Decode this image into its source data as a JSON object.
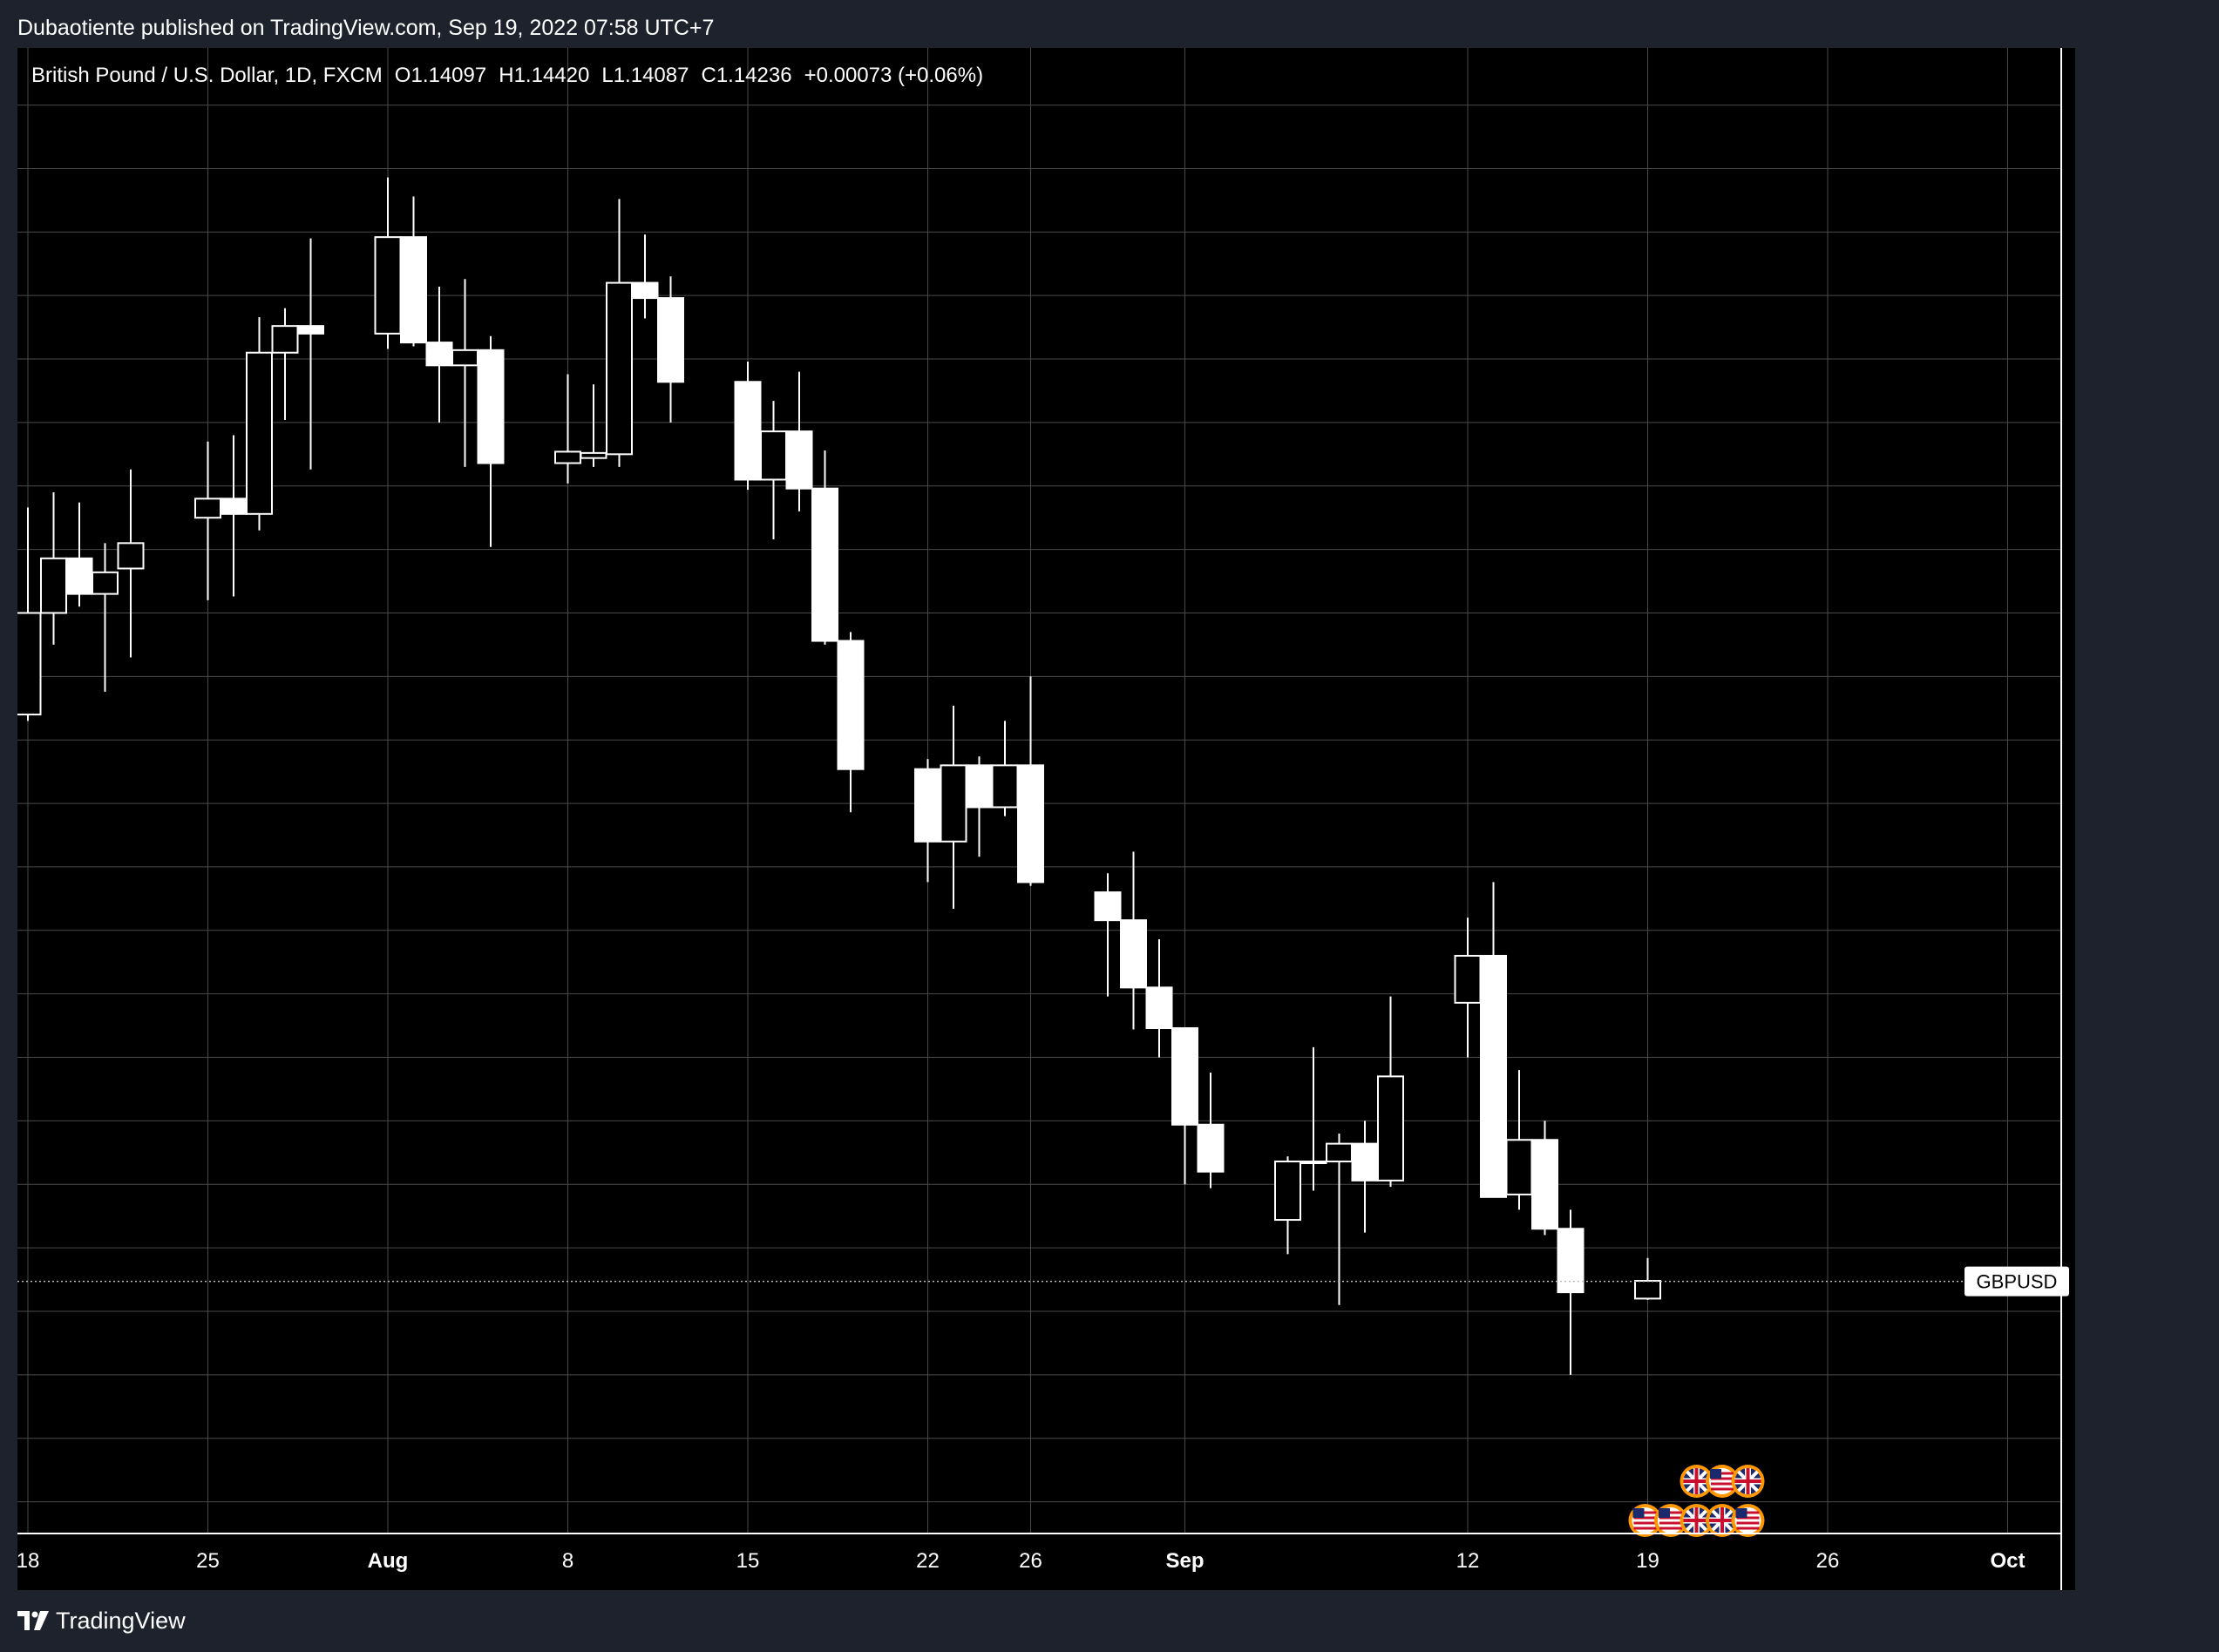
{
  "header": {
    "published_line": "Dubaotiente published on TradingView.com, Sep 19, 2022 07:58 UTC+7"
  },
  "legend": {
    "symbol_desc": "British Pound / U.S. Dollar, 1D, FXCM",
    "open_label": "O",
    "open": "1.14097",
    "high_label": "H",
    "high": "1.14420",
    "low_label": "L",
    "low": "1.14087",
    "close_label": "C",
    "close": "1.14236",
    "change": "+0.00073 (+0.06%)"
  },
  "price_label": {
    "symbol": "GBPUSD",
    "price": 1.14236
  },
  "footer": {
    "brand": "TradingView"
  },
  "colors": {
    "background": "#000000",
    "frame": "#1e222d",
    "grid": "#4a4a4a",
    "candle": "#ffffff",
    "text": "#ffffff",
    "event_ring": "#ff9800"
  },
  "chart_data": {
    "type": "candlestick",
    "timeframe": "1D",
    "y_axis_unit": "USD",
    "ylim": [
      1.1225,
      1.2395
    ],
    "y_ticks": [
      "1.23500",
      "1.23000",
      "1.22500",
      "1.22000",
      "1.21500",
      "1.21000",
      "1.20500",
      "1.20000",
      "1.19500",
      "1.19000",
      "1.18500",
      "1.18000",
      "1.17500",
      "1.17000",
      "1.16500",
      "1.16000",
      "1.15500",
      "1.15000",
      "1.14500",
      "1.14000",
      "1.13500",
      "1.13000",
      "1.12500"
    ],
    "x_ticks": [
      {
        "label": "18",
        "date": "2022-07-18",
        "bold": false
      },
      {
        "label": "25",
        "date": "2022-07-25",
        "bold": false
      },
      {
        "label": "Aug",
        "date": "2022-08-01",
        "bold": true
      },
      {
        "label": "8",
        "date": "2022-08-08",
        "bold": false
      },
      {
        "label": "15",
        "date": "2022-08-15",
        "bold": false
      },
      {
        "label": "22",
        "date": "2022-08-22",
        "bold": false
      },
      {
        "label": "26",
        "date": "2022-08-26",
        "bold": false
      },
      {
        "label": "Sep",
        "date": "2022-09-01",
        "bold": true
      },
      {
        "label": "12",
        "date": "2022-09-12",
        "bold": false
      },
      {
        "label": "19",
        "date": "2022-09-19",
        "bold": false
      },
      {
        "label": "26",
        "date": "2022-09-26",
        "bold": false
      },
      {
        "label": "Oct",
        "date": "2022-10-03",
        "bold": true
      }
    ],
    "candles": [
      {
        "date": "2022-07-18",
        "o": 1.187,
        "h": 1.2033,
        "l": 1.1865,
        "c": 1.195
      },
      {
        "date": "2022-07-19",
        "o": 1.195,
        "h": 1.2045,
        "l": 1.1925,
        "c": 1.1993
      },
      {
        "date": "2022-07-20",
        "o": 1.1993,
        "h": 1.2037,
        "l": 1.1955,
        "c": 1.1965
      },
      {
        "date": "2022-07-21",
        "o": 1.1965,
        "h": 1.2005,
        "l": 1.1888,
        "c": 1.1982
      },
      {
        "date": "2022-07-22",
        "o": 1.1985,
        "h": 1.2063,
        "l": 1.1915,
        "c": 1.2005
      },
      {
        "date": "2022-07-25",
        "o": 1.2025,
        "h": 1.2085,
        "l": 1.196,
        "c": 1.204
      },
      {
        "date": "2022-07-26",
        "o": 1.204,
        "h": 1.209,
        "l": 1.1963,
        "c": 1.2028
      },
      {
        "date": "2022-07-27",
        "o": 1.2028,
        "h": 1.2183,
        "l": 1.2015,
        "c": 1.2155
      },
      {
        "date": "2022-07-28",
        "o": 1.2155,
        "h": 1.219,
        "l": 1.2102,
        "c": 1.2176
      },
      {
        "date": "2022-07-29",
        "o": 1.2176,
        "h": 1.2245,
        "l": 1.2063,
        "c": 1.217
      },
      {
        "date": "2022-08-01",
        "o": 1.217,
        "h": 1.2293,
        "l": 1.2158,
        "c": 1.2246
      },
      {
        "date": "2022-08-02",
        "o": 1.2246,
        "h": 1.2278,
        "l": 1.216,
        "c": 1.2163
      },
      {
        "date": "2022-08-03",
        "o": 1.2163,
        "h": 1.2207,
        "l": 1.21,
        "c": 1.2145
      },
      {
        "date": "2022-08-04",
        "o": 1.2145,
        "h": 1.2213,
        "l": 1.2065,
        "c": 1.2157
      },
      {
        "date": "2022-08-05",
        "o": 1.2157,
        "h": 1.2168,
        "l": 1.2002,
        "c": 1.2068
      },
      {
        "date": "2022-08-08",
        "o": 1.2068,
        "h": 1.2138,
        "l": 1.2052,
        "c": 1.2077
      },
      {
        "date": "2022-08-09",
        "o": 1.2072,
        "h": 1.213,
        "l": 1.2065,
        "c": 1.2076
      },
      {
        "date": "2022-08-10",
        "o": 1.2075,
        "h": 1.2276,
        "l": 1.2065,
        "c": 1.221
      },
      {
        "date": "2022-08-11",
        "o": 1.221,
        "h": 1.2248,
        "l": 1.2182,
        "c": 1.2198
      },
      {
        "date": "2022-08-12",
        "o": 1.2198,
        "h": 1.2215,
        "l": 1.21,
        "c": 1.2132
      },
      {
        "date": "2022-08-15",
        "o": 1.2132,
        "h": 1.2148,
        "l": 1.2047,
        "c": 1.2055
      },
      {
        "date": "2022-08-16",
        "o": 1.2055,
        "h": 1.2117,
        "l": 1.2008,
        "c": 1.2093
      },
      {
        "date": "2022-08-17",
        "o": 1.2093,
        "h": 1.214,
        "l": 1.203,
        "c": 1.2048
      },
      {
        "date": "2022-08-18",
        "o": 1.2048,
        "h": 1.2078,
        "l": 1.1925,
        "c": 1.1928
      },
      {
        "date": "2022-08-19",
        "o": 1.1928,
        "h": 1.1935,
        "l": 1.1793,
        "c": 1.1827
      },
      {
        "date": "2022-08-22",
        "o": 1.1827,
        "h": 1.1835,
        "l": 1.1738,
        "c": 1.177
      },
      {
        "date": "2022-08-23",
        "o": 1.177,
        "h": 1.1877,
        "l": 1.1717,
        "c": 1.183
      },
      {
        "date": "2022-08-24",
        "o": 1.183,
        "h": 1.1837,
        "l": 1.1758,
        "c": 1.1797
      },
      {
        "date": "2022-08-25",
        "o": 1.1797,
        "h": 1.1865,
        "l": 1.179,
        "c": 1.183
      },
      {
        "date": "2022-08-26",
        "o": 1.183,
        "h": 1.19,
        "l": 1.1735,
        "c": 1.1738
      },
      {
        "date": "2022-08-29",
        "o": 1.173,
        "h": 1.1745,
        "l": 1.1648,
        "c": 1.1708
      },
      {
        "date": "2022-08-30",
        "o": 1.1708,
        "h": 1.1762,
        "l": 1.1622,
        "c": 1.1655
      },
      {
        "date": "2022-08-31",
        "o": 1.1655,
        "h": 1.1693,
        "l": 1.16,
        "c": 1.1623
      },
      {
        "date": "2022-09-01",
        "o": 1.1623,
        "h": 1.1623,
        "l": 1.15,
        "c": 1.1547
      },
      {
        "date": "2022-09-02",
        "o": 1.1547,
        "h": 1.1588,
        "l": 1.1497,
        "c": 1.151
      },
      {
        "date": "2022-09-05",
        "o": 1.1472,
        "h": 1.1522,
        "l": 1.1445,
        "c": 1.1518
      },
      {
        "date": "2022-09-06",
        "o": 1.1518,
        "h": 1.1608,
        "l": 1.1495,
        "c": 1.1518
      },
      {
        "date": "2022-09-07",
        "o": 1.1518,
        "h": 1.154,
        "l": 1.1405,
        "c": 1.1532
      },
      {
        "date": "2022-09-08",
        "o": 1.1532,
        "h": 1.155,
        "l": 1.1462,
        "c": 1.1503
      },
      {
        "date": "2022-09-09",
        "o": 1.1503,
        "h": 1.1648,
        "l": 1.1498,
        "c": 1.1585
      },
      {
        "date": "2022-09-12",
        "o": 1.1643,
        "h": 1.171,
        "l": 1.16,
        "c": 1.168
      },
      {
        "date": "2022-09-13",
        "o": 1.168,
        "h": 1.1738,
        "l": 1.149,
        "c": 1.149
      },
      {
        "date": "2022-09-14",
        "o": 1.1492,
        "h": 1.159,
        "l": 1.148,
        "c": 1.1535
      },
      {
        "date": "2022-09-15",
        "o": 1.1535,
        "h": 1.155,
        "l": 1.146,
        "c": 1.1465
      },
      {
        "date": "2022-09-16",
        "o": 1.1465,
        "h": 1.148,
        "l": 1.135,
        "c": 1.1415
      },
      {
        "date": "2022-09-19",
        "o": 1.141,
        "h": 1.1442,
        "l": 1.1409,
        "c": 1.1424
      }
    ],
    "events": [
      {
        "date": "2022-09-21",
        "row": 1,
        "flag": "uk"
      },
      {
        "date": "2022-09-22",
        "row": 1,
        "flag": "us"
      },
      {
        "date": "2022-09-23",
        "row": 1,
        "flag": "uk"
      },
      {
        "date": "2022-09-19",
        "row": 0,
        "flag": "us"
      },
      {
        "date": "2022-09-20",
        "row": 0,
        "flag": "us"
      },
      {
        "date": "2022-09-21",
        "row": 0,
        "flag": "uk"
      },
      {
        "date": "2022-09-22",
        "row": 0,
        "flag": "uk"
      },
      {
        "date": "2022-09-23",
        "row": 0,
        "flag": "us"
      }
    ]
  }
}
